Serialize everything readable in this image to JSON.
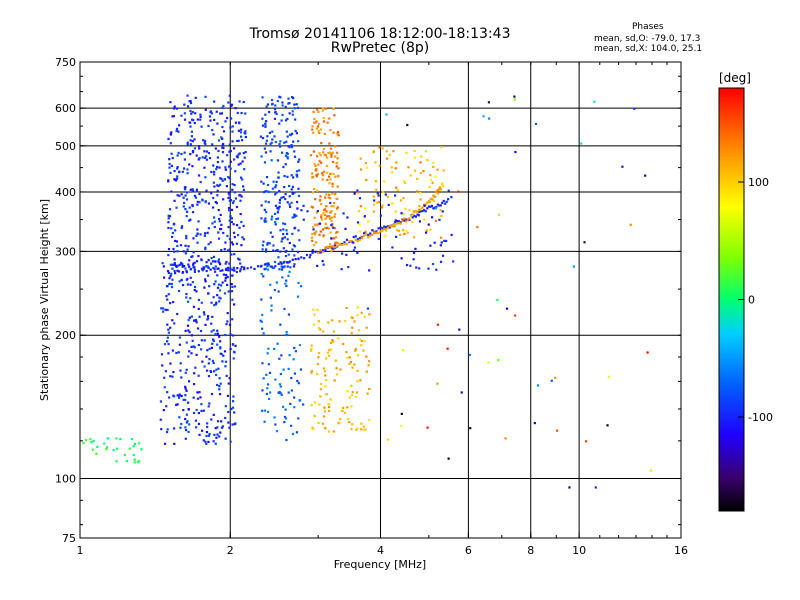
{
  "header": {
    "title_line1": "Tromsø 20141106 18:12:00-18:13:43",
    "title_line2": "RwPretec (8p)"
  },
  "phase_info": {
    "title": "Phases",
    "o_line": "mean, sd,O: -79.0, 17.3",
    "x_line": "mean, sd,X: 104.0, 25.1"
  },
  "colorbar": {
    "label": "[deg]",
    "ticks": [
      {
        "value": 100,
        "label": "100"
      },
      {
        "value": 0,
        "label": "0"
      },
      {
        "value": -100,
        "label": "-100"
      }
    ],
    "range": [
      -180,
      180
    ]
  },
  "chart_data": {
    "type": "scatter",
    "title": "Tromsø 20141106 18:12:00-18:13:43",
    "subtitle": "RwPretec (8p)",
    "xlabel": "Frequency [MHz]",
    "ylabel": "Stationary phase Virtual Height [km]",
    "x_scale": "log",
    "y_scale": "log",
    "xlim": [
      1,
      16
    ],
    "ylim": [
      75,
      750
    ],
    "grid": true,
    "x_ticks": [
      {
        "value": 1,
        "label": "1"
      },
      {
        "value": 2,
        "label": "2"
      },
      {
        "value": 4,
        "label": "4"
      },
      {
        "value": 6,
        "label": "6"
      },
      {
        "value": 8,
        "label": "8"
      },
      {
        "value": 10,
        "label": "10"
      },
      {
        "value": 16,
        "label": "16"
      }
    ],
    "x_grid": [
      2,
      4,
      6,
      8,
      10
    ],
    "y_ticks": [
      {
        "value": 75,
        "label": "75"
      },
      {
        "value": 100,
        "label": "100"
      },
      {
        "value": 200,
        "label": "200"
      },
      {
        "value": 300,
        "label": "300"
      },
      {
        "value": 400,
        "label": "400"
      },
      {
        "value": 500,
        "label": "500"
      },
      {
        "value": 600,
        "label": "600"
      },
      {
        "value": 750,
        "label": "750"
      }
    ],
    "y_grid": [
      100,
      200,
      300,
      400,
      500,
      600
    ],
    "color_scale": "phase in degrees, rainbow -180 (black/purple) to +180 (red)",
    "clusters": [
      {
        "name": "",
        "x": [
          1.5,
          2.15
        ],
        "y": [
          270,
          640
        ],
        "phase": [
          -110,
          -80
        ],
        "n": 420
      },
      {
        "name": "",
        "x": [
          2.3,
          2.75
        ],
        "y": [
          275,
          640
        ],
        "phase": [
          -100,
          -70
        ],
        "n": 220
      },
      {
        "name": "",
        "x": [
          1.45,
          2.05
        ],
        "y": [
          118,
          290
        ],
        "phase": [
          -115,
          -75
        ],
        "n": 360
      },
      {
        "name": "",
        "x": [
          2.3,
          2.8
        ],
        "y": [
          120,
          290
        ],
        "phase": [
          -90,
          -55
        ],
        "n": 100
      },
      {
        "name": "",
        "x": [
          2.9,
          3.3
        ],
        "y": [
          300,
          600
        ],
        "phase": [
          110,
          150
        ],
        "n": 180
      },
      {
        "name": "",
        "x": [
          2.9,
          3.8
        ],
        "y": [
          125,
          230
        ],
        "phase": [
          90,
          130
        ],
        "n": 130
      },
      {
        "name": "",
        "x": [
          3.6,
          5.4
        ],
        "y": [
          320,
          500
        ],
        "phase": [
          80,
          140
        ],
        "n": 110
      },
      {
        "name": "",
        "x": [
          2.5,
          5.6
        ],
        "y": [
          270,
          410
        ],
        "phase": [
          -110,
          -90
        ],
        "n": 90
      },
      {
        "name": "",
        "x": [
          1.0,
          1.35
        ],
        "y": [
          108,
          122
        ],
        "phase": [
          -10,
          20
        ],
        "n": 30
      }
    ],
    "trace": {
      "o_mode": [
        [
          1.55,
          272
        ],
        [
          2.0,
          275
        ],
        [
          2.5,
          282
        ],
        [
          3.0,
          298
        ],
        [
          3.5,
          318
        ],
        [
          4.0,
          335
        ],
        [
          4.5,
          350
        ],
        [
          5.0,
          370
        ],
        [
          5.5,
          385
        ]
      ],
      "x_mode": [
        [
          3.0,
          300
        ],
        [
          3.5,
          315
        ],
        [
          4.0,
          330
        ],
        [
          4.5,
          350
        ],
        [
          5.0,
          380
        ],
        [
          5.3,
          410
        ]
      ]
    }
  }
}
